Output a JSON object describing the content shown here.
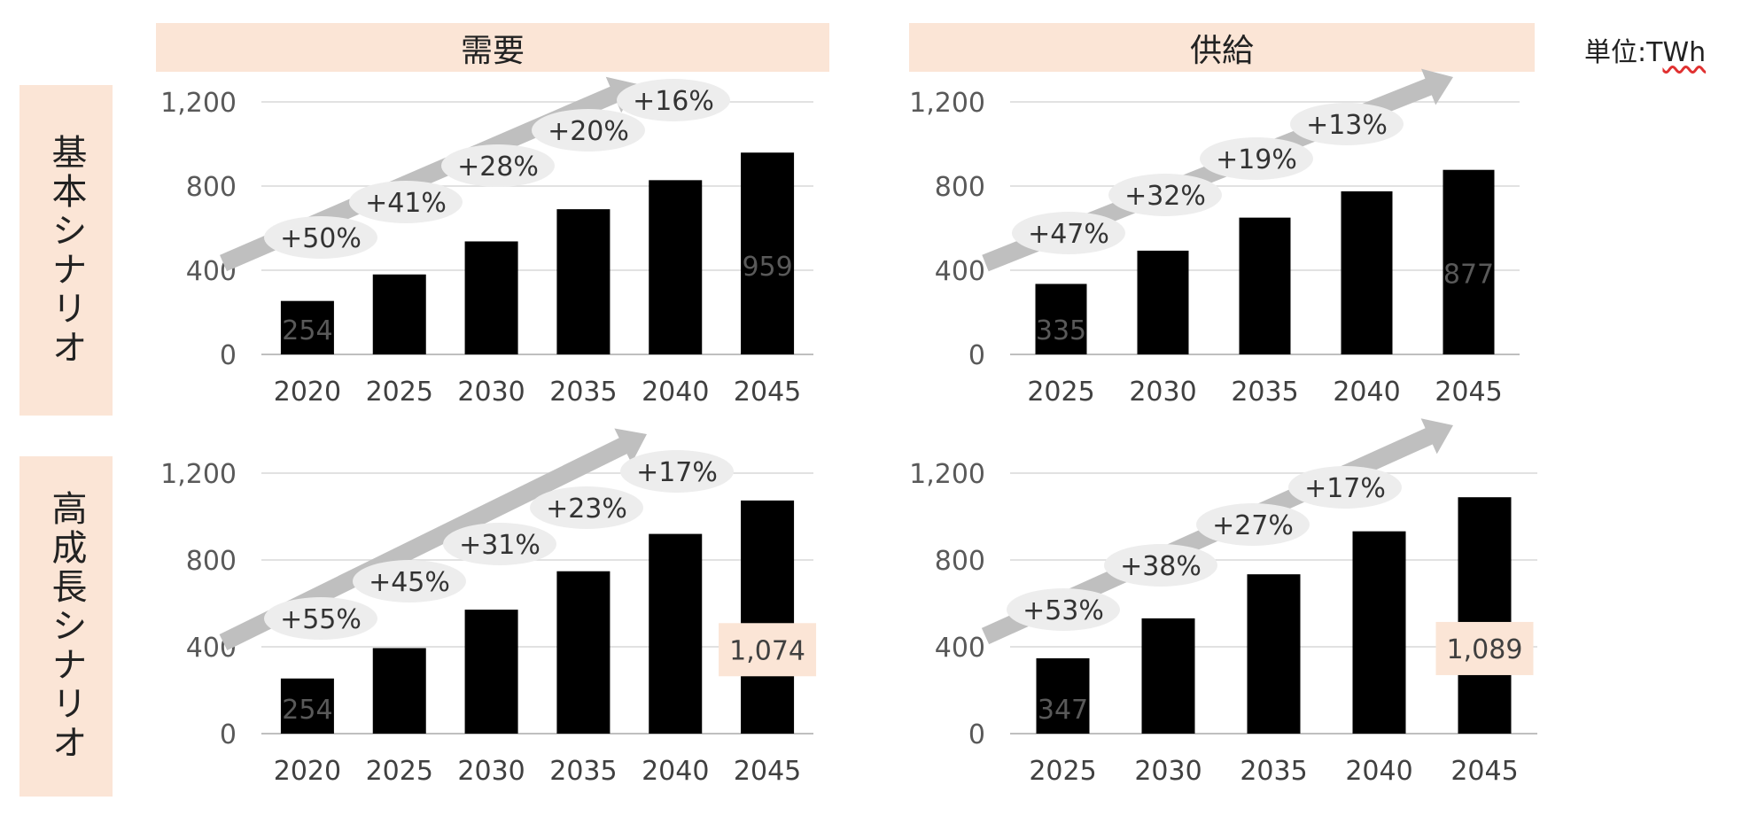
{
  "headers": {
    "demand": "需要",
    "supply": "供給",
    "unit": "単位:TWh"
  },
  "rows": {
    "base": "基本シナリオ",
    "high": "高成長シナリオ"
  },
  "colors": {
    "demand": "#ed7d31",
    "supply": "#f8cbad",
    "label_bg": "#fbe5d6",
    "arrow": "#bfbfbf"
  },
  "chart_data": [
    {
      "type": "bar",
      "id": "base-demand",
      "categories": [
        "2020",
        "2025",
        "2030",
        "2035",
        "2040",
        "2045"
      ],
      "values": [
        254,
        380,
        537,
        690,
        828,
        959
      ],
      "growth_labels": [
        "+50%",
        "+41%",
        "+28%",
        "+20%",
        "+16%"
      ],
      "data_labels": {
        "2020": "254",
        "2045": "959"
      },
      "ylim": [
        0,
        1200
      ],
      "yticks": [
        "0",
        "400",
        "800",
        "1,200"
      ],
      "grid": true
    },
    {
      "type": "bar",
      "id": "base-supply",
      "categories": [
        "2025",
        "2030",
        "2035",
        "2040",
        "2045"
      ],
      "values": [
        335,
        493,
        650,
        775,
        877
      ],
      "growth_labels": [
        "+47%",
        "+32%",
        "+19%",
        "+13%"
      ],
      "data_labels": {
        "2025": "335",
        "2045": "877"
      },
      "ylim": [
        0,
        1200
      ],
      "yticks": [
        "0",
        "400",
        "800",
        "1,200"
      ],
      "grid": true
    },
    {
      "type": "bar",
      "id": "high-demand",
      "categories": [
        "2020",
        "2025",
        "2030",
        "2035",
        "2040",
        "2045"
      ],
      "values": [
        254,
        394,
        571,
        748,
        920,
        1074
      ],
      "growth_labels": [
        "+55%",
        "+45%",
        "+31%",
        "+23%",
        "+17%"
      ],
      "data_labels": {
        "2020": "254",
        "2045": "1,074"
      },
      "ylim": [
        0,
        1200
      ],
      "yticks": [
        "0",
        "400",
        "800",
        "1,200"
      ],
      "grid": true
    },
    {
      "type": "bar",
      "id": "high-supply",
      "categories": [
        "2025",
        "2030",
        "2035",
        "2040",
        "2045"
      ],
      "values": [
        347,
        531,
        734,
        932,
        1089
      ],
      "growth_labels": [
        "+53%",
        "+38%",
        "+27%",
        "+17%"
      ],
      "data_labels": {
        "2025": "347",
        "2045": "1,089"
      },
      "ylim": [
        0,
        1200
      ],
      "yticks": [
        "0",
        "400",
        "800",
        "1,200"
      ],
      "grid": true
    }
  ]
}
